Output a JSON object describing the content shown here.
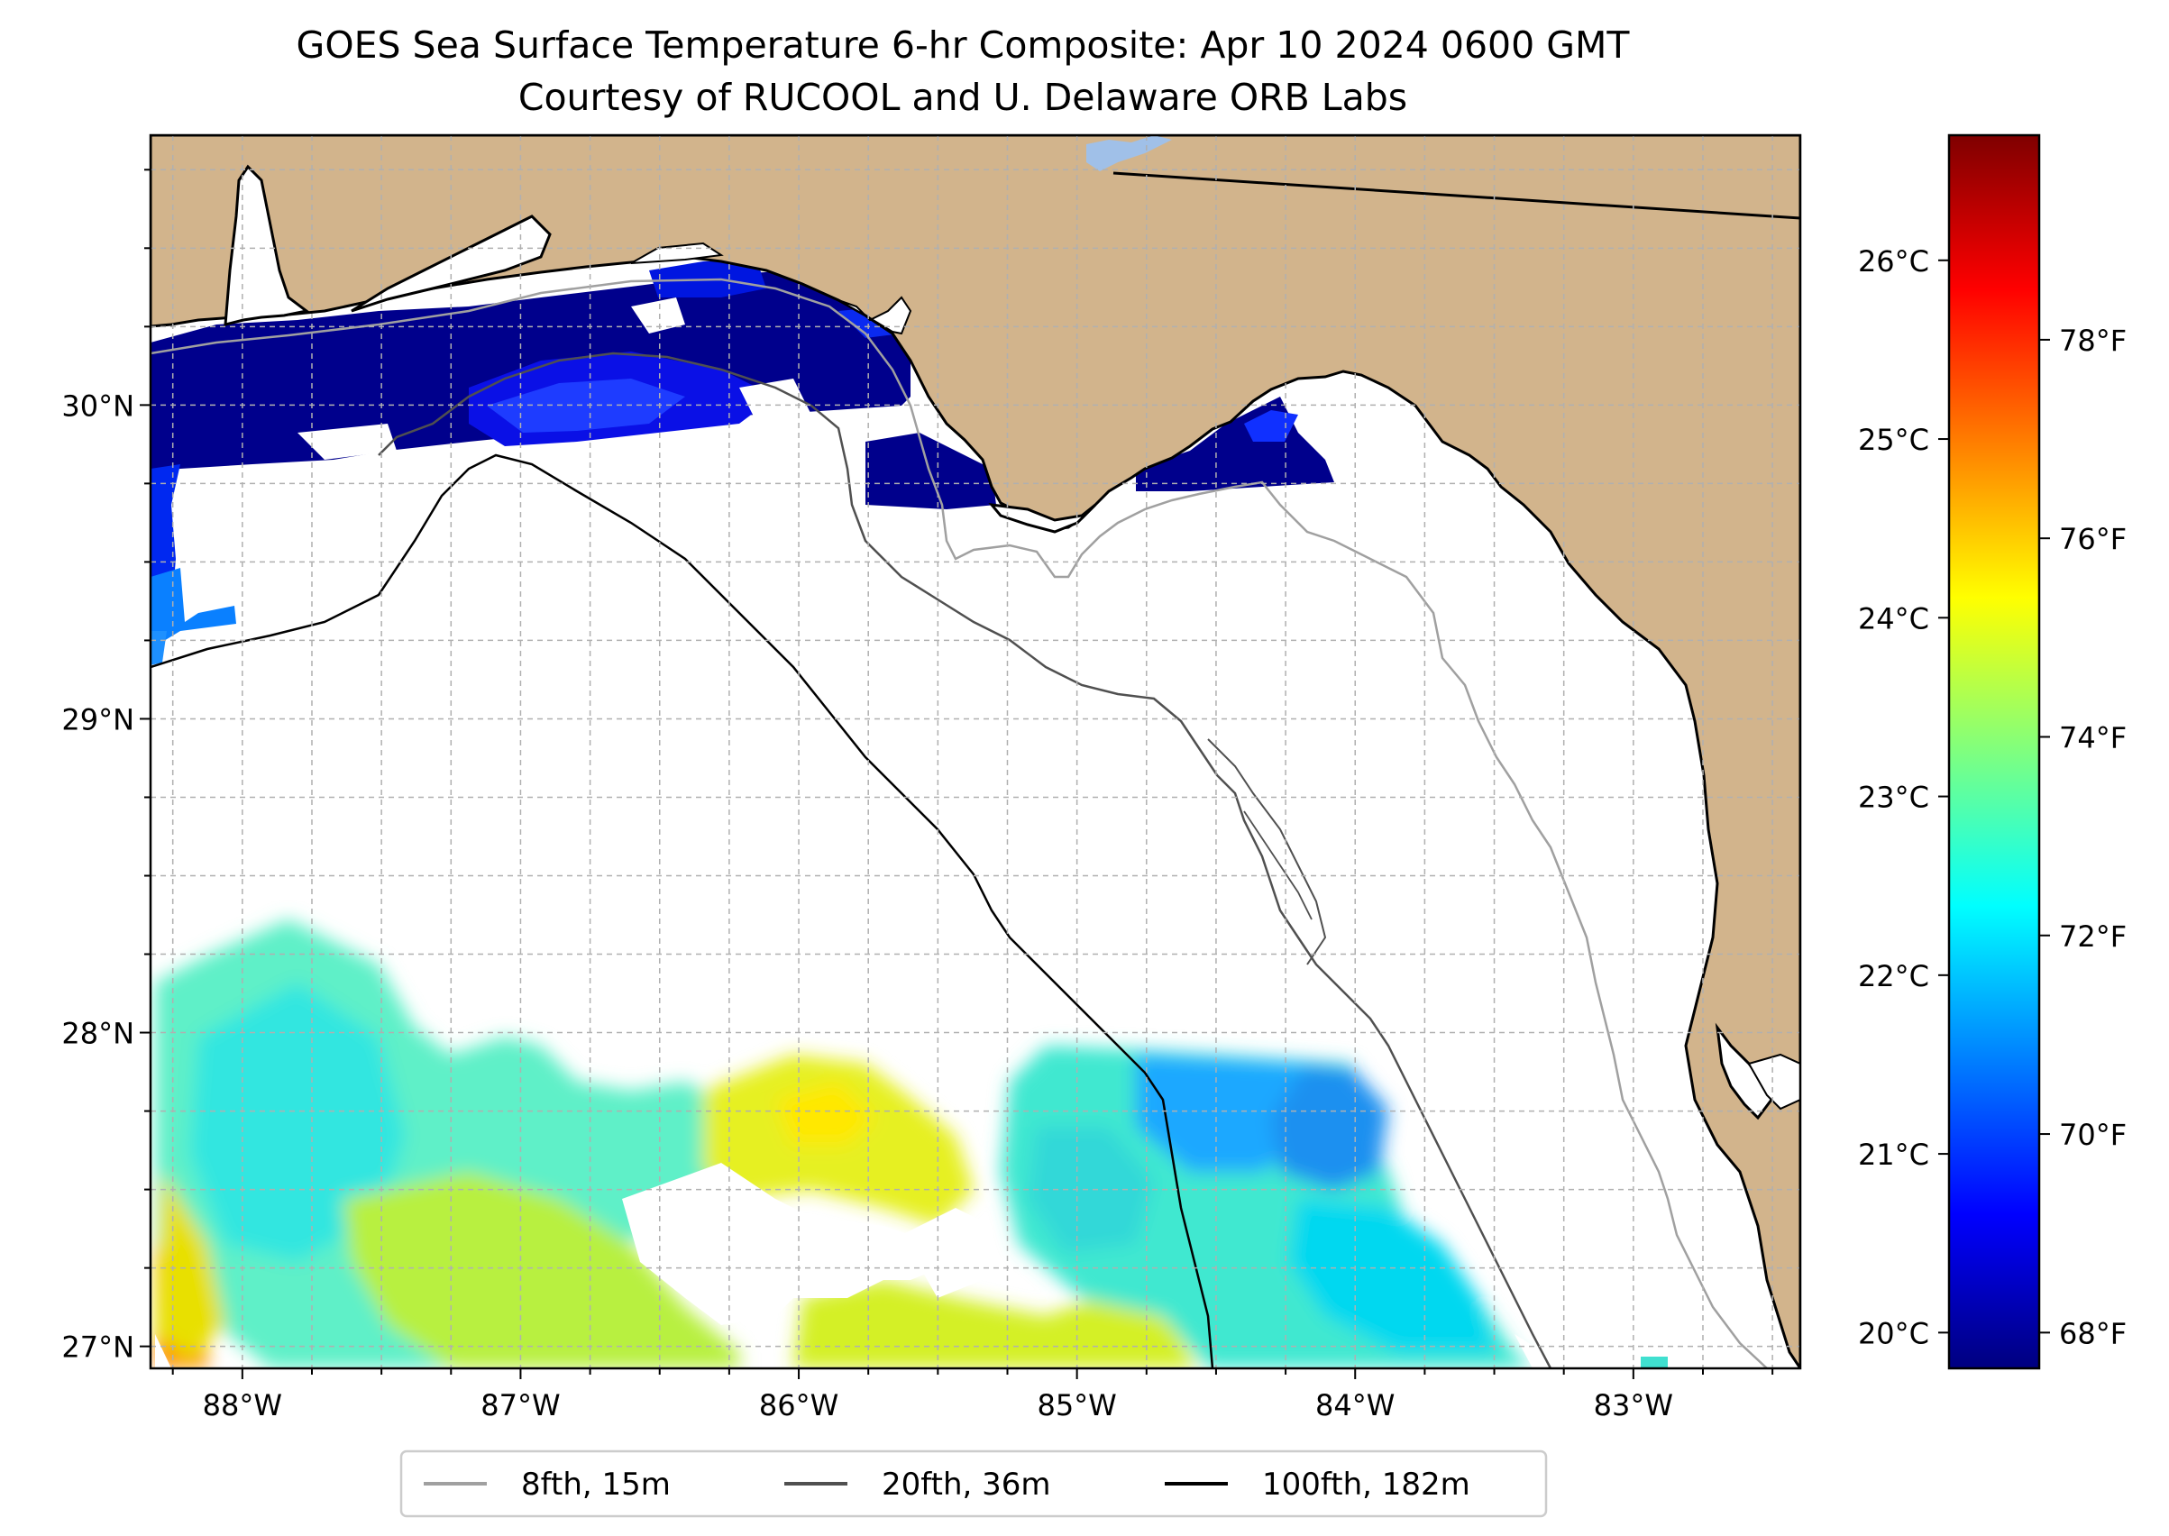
{
  "title": "GOES Sea Surface Temperature 6-hr Composite: Apr 10 2024 0600 GMT",
  "subtitle": "Courtesy of RUCOOL and U. Delaware ORB Labs",
  "map": {
    "lon_range": [
      -88.33,
      -82.4
    ],
    "lat_range": [
      26.93,
      30.86
    ],
    "lon_ticks": [
      {
        "value": -88,
        "label": "88°W"
      },
      {
        "value": -87,
        "label": "87°W"
      },
      {
        "value": -86,
        "label": "86°W"
      },
      {
        "value": -85,
        "label": "85°W"
      },
      {
        "value": -84,
        "label": "84°W"
      },
      {
        "value": -83,
        "label": "83°W"
      }
    ],
    "lat_ticks": [
      {
        "value": 30,
        "label": "30°N"
      },
      {
        "value": 29,
        "label": "29°N"
      },
      {
        "value": 28,
        "label": "28°N"
      },
      {
        "value": 27,
        "label": "27°N"
      }
    ],
    "colors": {
      "land": "#d2b48c",
      "water": "#ffffff",
      "grid": "#b0b0b0",
      "coast": "#000000"
    }
  },
  "colorbar": {
    "celsius_ticks": [
      {
        "value": 26,
        "label": "26°C"
      },
      {
        "value": 25,
        "label": "25°C"
      },
      {
        "value": 24,
        "label": "24°C"
      },
      {
        "value": 23,
        "label": "23°C"
      },
      {
        "value": 22,
        "label": "22°C"
      },
      {
        "value": 21,
        "label": "21°C"
      },
      {
        "value": 20,
        "label": "20°C"
      }
    ],
    "fahrenheit_ticks": [
      {
        "value": 78,
        "label": "78°F"
      },
      {
        "value": 76,
        "label": "76°F"
      },
      {
        "value": 74,
        "label": "74°F"
      },
      {
        "value": 72,
        "label": "72°F"
      },
      {
        "value": 70,
        "label": "70°F"
      },
      {
        "value": 68,
        "label": "68°F"
      }
    ],
    "range_celsius": [
      19.8,
      26.7
    ],
    "colormap": [
      "#00007f",
      "#0000ff",
      "#007fff",
      "#00ffff",
      "#7fff7f",
      "#ffff00",
      "#ff7f00",
      "#ff0000",
      "#7f0000"
    ]
  },
  "legend": {
    "items": [
      {
        "label": "8fth, 15m",
        "color": "#a0a0a0"
      },
      {
        "label": "20fth, 36m",
        "color": "#505050"
      },
      {
        "label": "100fth, 182m",
        "color": "#000000"
      }
    ]
  }
}
